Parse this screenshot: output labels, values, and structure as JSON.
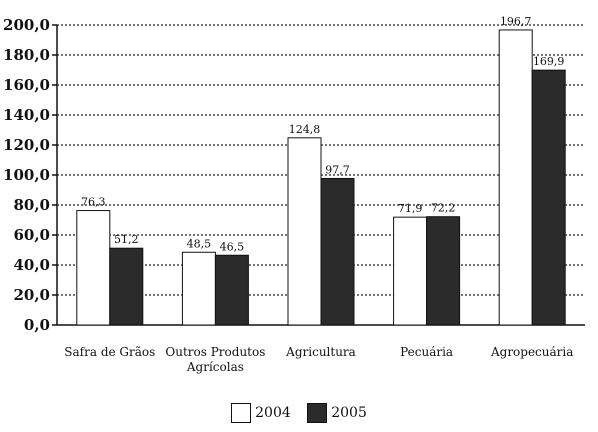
{
  "chart_data": {
    "type": "bar",
    "categories": [
      "Safra de Grãos",
      "Outros Produtos Agrícolas",
      "Agricultura",
      "Pecuária",
      "Agropecuária"
    ],
    "category_lines": [
      [
        "Safra de Grãos"
      ],
      [
        "Outros Produtos",
        "Agrícolas"
      ],
      [
        "Agricultura"
      ],
      [
        "Pecuária"
      ],
      [
        "Agropecuária"
      ]
    ],
    "series": [
      {
        "name": "2004",
        "values": [
          76.3,
          48.5,
          124.8,
          71.9,
          196.7
        ],
        "labels": [
          "76,3",
          "48,5",
          "124,8",
          "71,9",
          "196,7"
        ],
        "color": "#ffffff"
      },
      {
        "name": "2005",
        "values": [
          51.2,
          46.5,
          97.7,
          72.2,
          169.9
        ],
        "labels": [
          "51,2",
          "46,5",
          "97,7",
          "72,2",
          "169,9"
        ],
        "color": "#2b2b2b"
      }
    ],
    "yticks": [
      "0,0",
      "20,0",
      "40,0",
      "60,0",
      "80,0",
      "100,0",
      "120,0",
      "140,0",
      "160,0",
      "180,0",
      "200,0"
    ],
    "ylim": [
      0,
      200
    ],
    "title": "",
    "xlabel": "",
    "ylabel": "",
    "grid": "horizontal dotted",
    "legend_position": "bottom-center"
  },
  "legend": {
    "items": [
      {
        "label": "2004",
        "color": "#ffffff"
      },
      {
        "label": "2005",
        "color": "#2b2b2b"
      }
    ]
  }
}
